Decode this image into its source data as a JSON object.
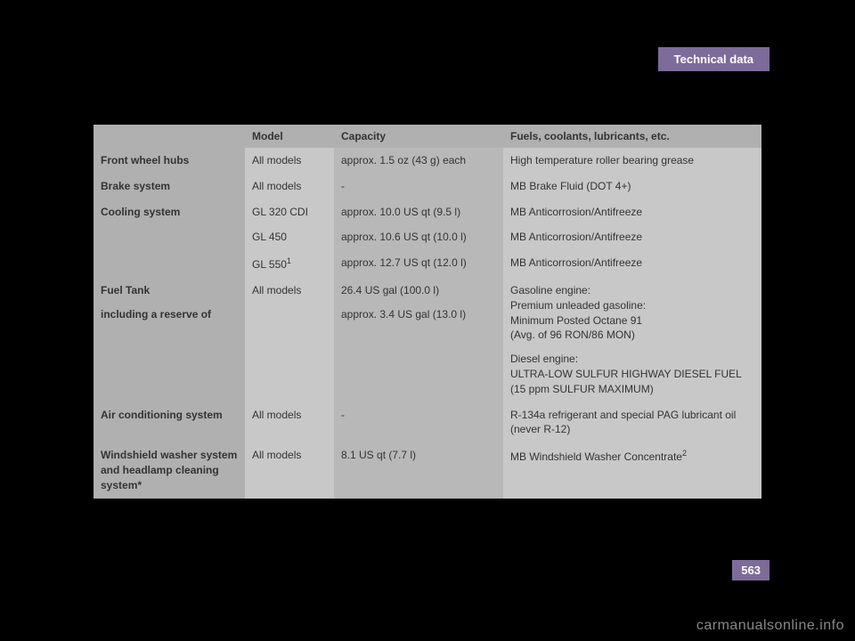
{
  "header": {
    "tab": "Technical data"
  },
  "table": {
    "columns": [
      "",
      "Model",
      "Capacity",
      "Fuels, coolants, lubricants, etc."
    ],
    "rows": [
      {
        "cat": "Front wheel hubs",
        "model": "All models",
        "cap": "approx. 1.5 oz (43 g) each",
        "fluid": "High temperature roller bearing grease",
        "cat_rowspan": 1
      },
      {
        "cat": "Brake system",
        "model": "All models",
        "cap": "-",
        "fluid": "MB Brake Fluid (DOT 4+)",
        "cat_rowspan": 1
      },
      {
        "cat": "Cooling system",
        "model": "GL 320 CDI",
        "cap": "approx. 10.0 US qt (9.5 l)",
        "fluid": "MB Anticorrosion/Antifreeze",
        "cat_rowspan": 3
      },
      {
        "model": "GL 450",
        "cap": "approx. 10.6 US qt (10.0 l)",
        "fluid": "MB Anticorrosion/Antifreeze"
      },
      {
        "model": "GL 550",
        "model_sup": "1",
        "cap": "approx. 12.7 US qt (12.0 l)",
        "fluid": "MB Anticorrosion/Antifreeze"
      },
      {
        "cat": "Fuel Tank",
        "cat_sub": "including a reserve of",
        "model": "All models",
        "cap": "26.4 US gal (100.0 l)",
        "cap_sub": "approx. 3.4 US gal (13.0 l)",
        "fluid": "Gasoline engine:\nPremium unleaded gasoline:\nMinimum Posted Octane 91\n(Avg. of 96 RON/86 MON)",
        "fluid_sub": "Diesel engine:\nULTRA-LOW SULFUR HIGHWAY DIESEL FUEL\n(15 ppm SULFUR MAXIMUM)",
        "cat_rowspan": 1
      },
      {
        "cat": "Air conditioning system",
        "model": "All models",
        "cap": "-",
        "fluid": "R-134a refrigerant and special PAG lubricant oil\n(never R-12)",
        "cat_rowspan": 1
      },
      {
        "cat": "Windshield washer system and headlamp cleaning system*",
        "model": "All models",
        "cap": "8.1 US qt (7.7 l)",
        "fluid": "MB Windshield Washer Concentrate",
        "fluid_sup": "2",
        "cat_rowspan": 1
      }
    ]
  },
  "page_number": "563",
  "watermark": "carmanualsonline.info"
}
